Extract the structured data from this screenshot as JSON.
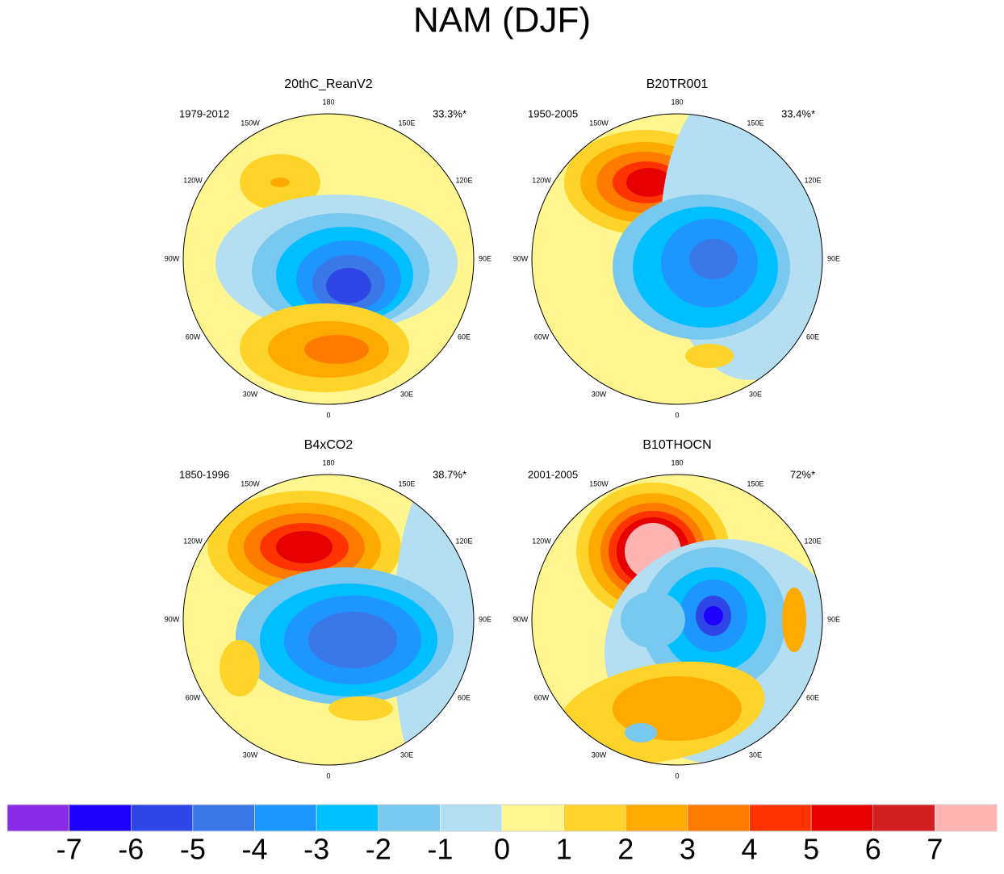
{
  "title": "NAM (DJF)",
  "lon_labels": [
    "0",
    "30E",
    "60E",
    "90E",
    "120E",
    "150E",
    "180",
    "150W",
    "120W",
    "90W",
    "60W",
    "30W"
  ],
  "panels": [
    {
      "title": "20thC_ReanV2",
      "period": "1979-2012",
      "percent": "33.3%*"
    },
    {
      "title": "B20TR001",
      "period": "1950-2005",
      "percent": "33.4%*"
    },
    {
      "title": "B4xCO2",
      "period": "1850-1996",
      "percent": "38.7%*"
    },
    {
      "title": "B10THOCN",
      "period": "2001-2005",
      "percent": "72%*"
    }
  ],
  "colorbar": {
    "colors": [
      "#8a2be8",
      "#1e00ff",
      "#2e46e6",
      "#3a78e8",
      "#1e96ff",
      "#00bfff",
      "#78c8f0",
      "#b4def2",
      "#fff68f",
      "#ffd42a",
      "#ffaa00",
      "#ff7b00",
      "#ff3300",
      "#e60000",
      "#d21e1e",
      "#ffb4b4"
    ],
    "labels": [
      -7,
      -6,
      -5,
      -4,
      -3,
      -2,
      -1,
      0,
      1,
      2,
      3,
      4,
      5,
      6,
      7
    ]
  }
}
